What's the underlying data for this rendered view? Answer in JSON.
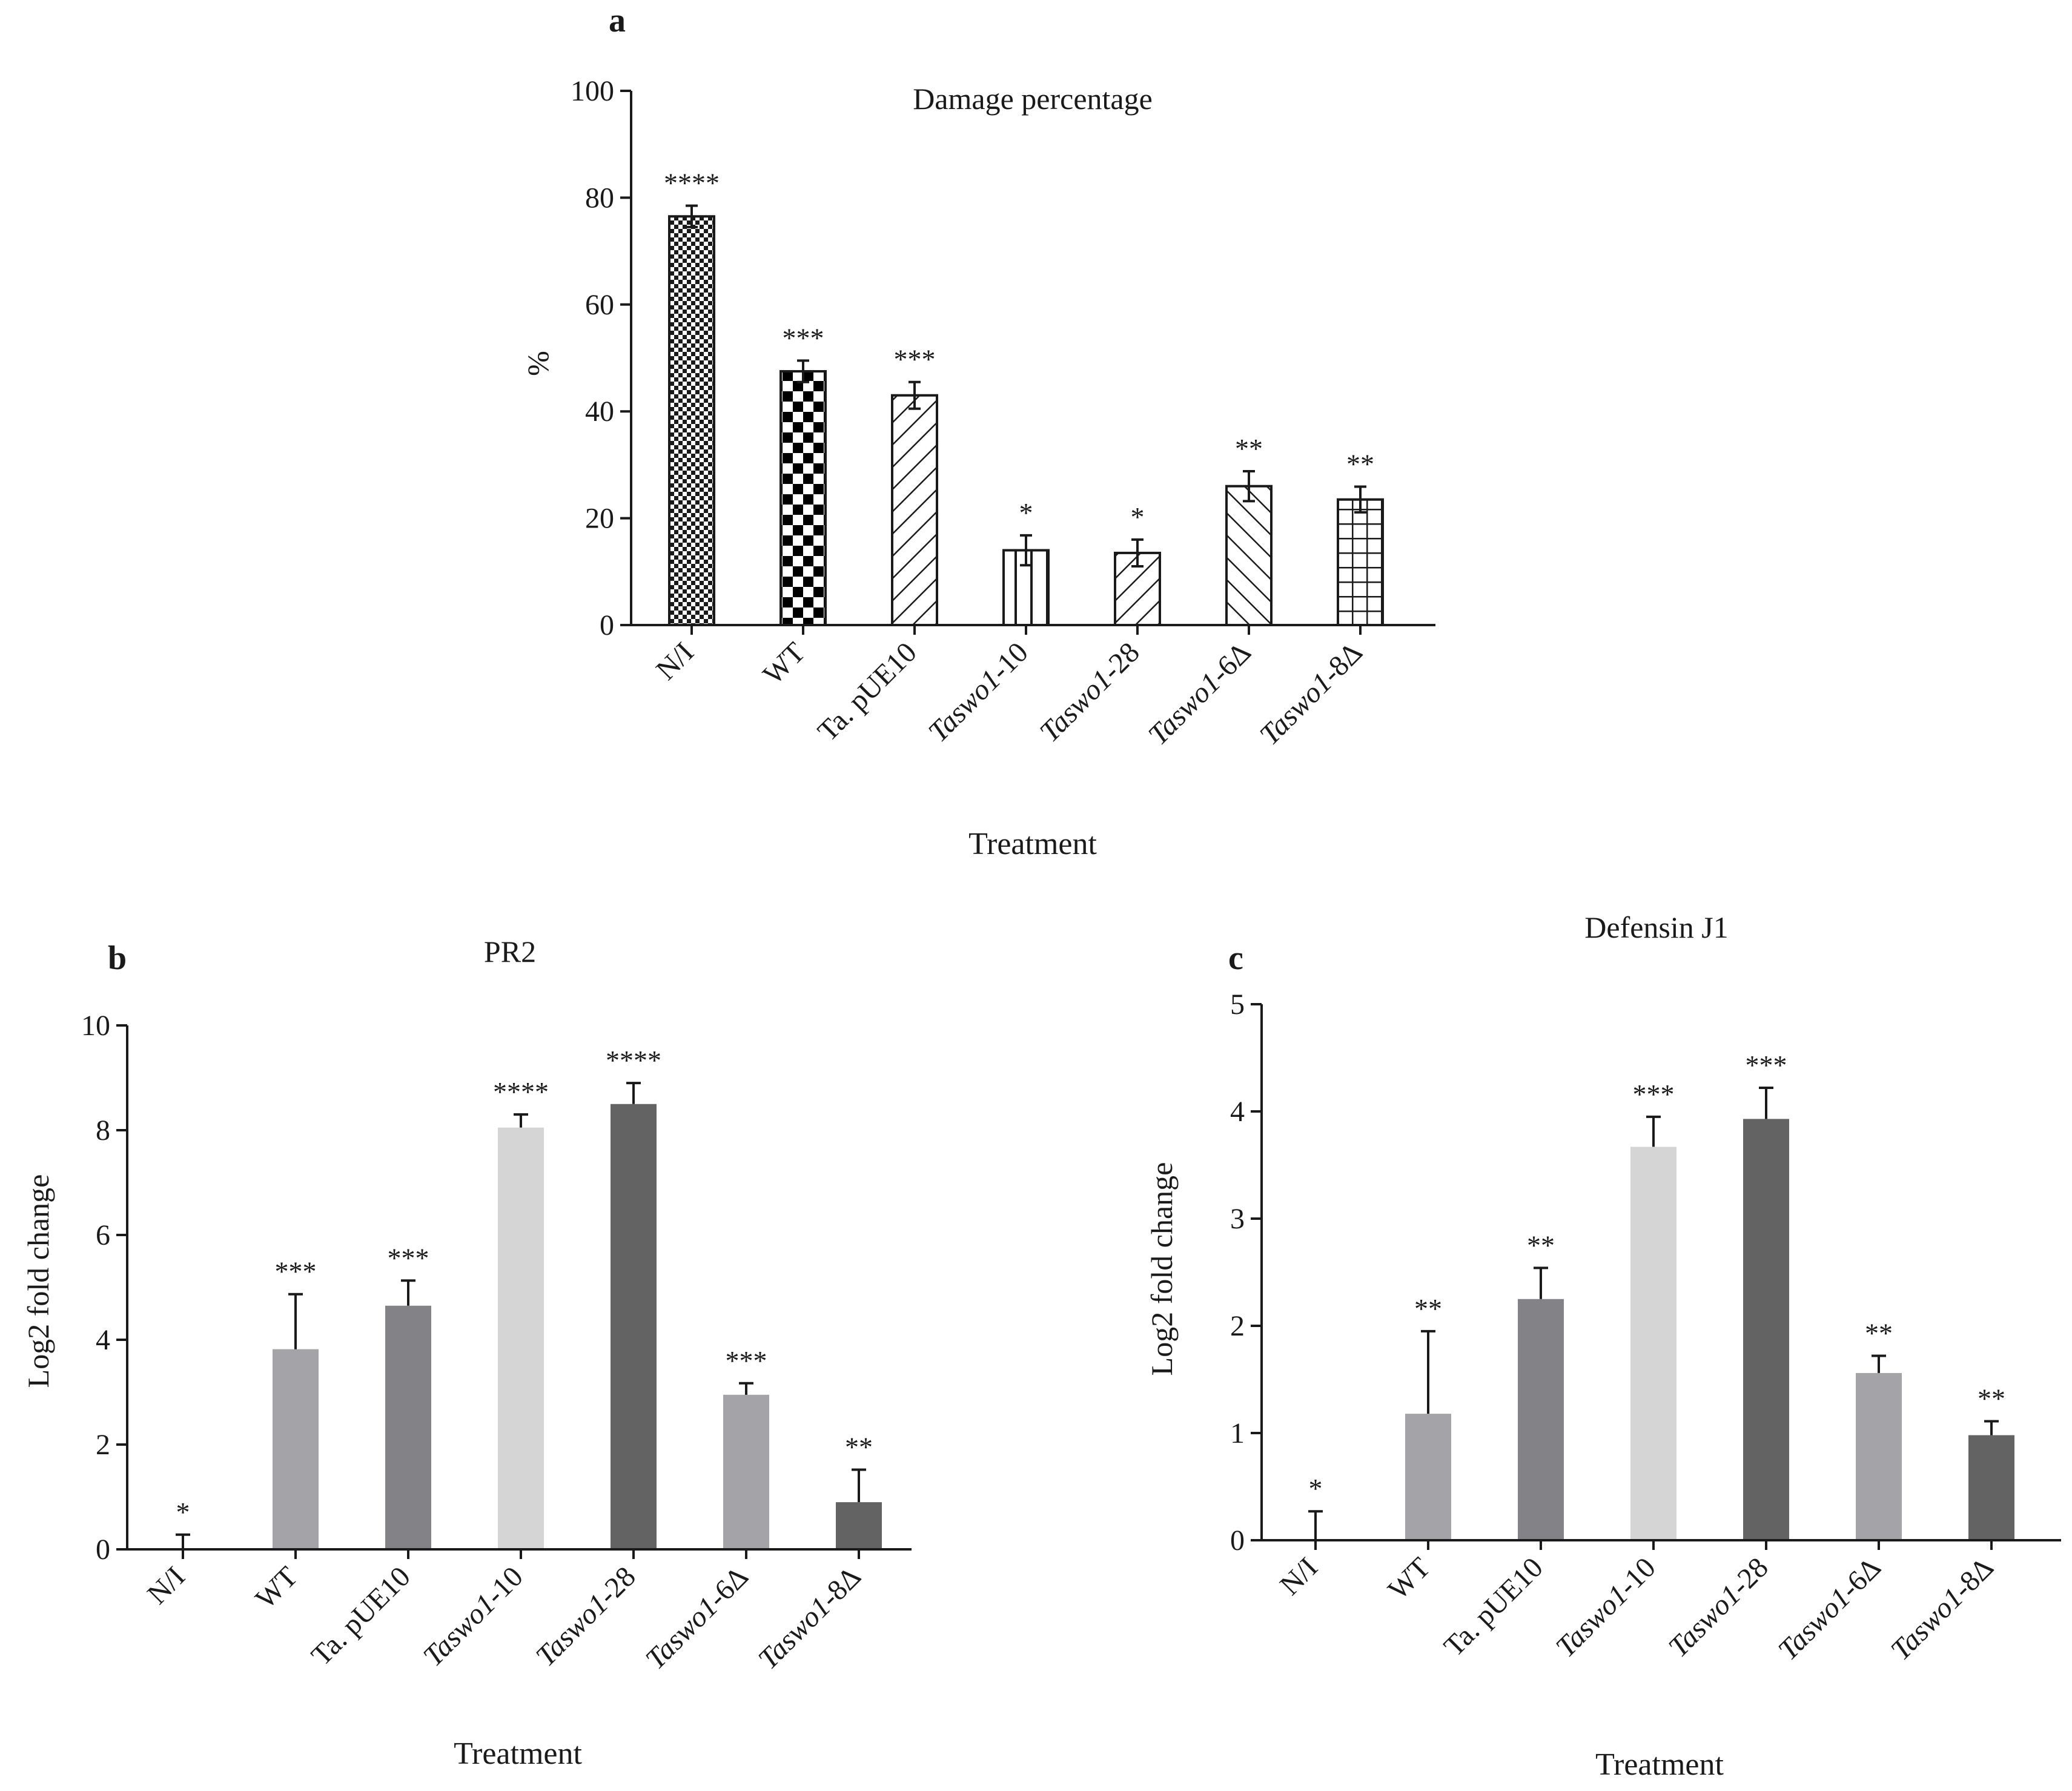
{
  "chart_data": [
    {
      "panel": "a",
      "type": "bar",
      "title": "Damage percentage",
      "xlabel": "Treatment",
      "ylabel": "%",
      "ylim": [
        0,
        100
      ],
      "yticks": [
        0,
        20,
        40,
        60,
        80,
        100
      ],
      "categories": [
        "N/I",
        "WT",
        "Ta. pUE10",
        "Taswo1-10",
        "Taswo1-28",
        "Taswo1-6Δ",
        "Taswo1-8Δ"
      ],
      "category_parts": [
        [
          "N/I",
          ""
        ],
        [
          "WT",
          ""
        ],
        [
          "Ta. pUE10",
          ""
        ],
        [
          "Taswo1",
          "-10"
        ],
        [
          "Taswo1",
          "-28"
        ],
        [
          "Taswo1",
          "-6Δ"
        ],
        [
          "Taswo1",
          "-8Δ"
        ]
      ],
      "values": [
        76.5,
        47.5,
        43,
        14,
        13.5,
        26,
        23.5
      ],
      "errors": [
        2,
        2,
        2.5,
        2.8,
        2.5,
        2.8,
        2.4
      ],
      "significance": [
        "****",
        "***",
        "***",
        "*",
        "*",
        "**",
        "**"
      ],
      "patterns": [
        "fine-check",
        "checker",
        "diag-up",
        "vlines",
        "diag-up",
        "diag-down",
        "grid"
      ]
    },
    {
      "panel": "b",
      "type": "bar",
      "title": "PR2",
      "xlabel": "Treatment",
      "ylabel": "Log2 fold change",
      "ylim": [
        0,
        10
      ],
      "yticks": [
        0,
        2,
        4,
        6,
        8,
        10
      ],
      "categories": [
        "N/I",
        "WT",
        "Ta. pUE10",
        "Taswo1-10",
        "Taswo1-28",
        "Taswo1-6Δ",
        "Taswo1-8Δ"
      ],
      "category_parts": [
        [
          "N/I",
          ""
        ],
        [
          "WT",
          ""
        ],
        [
          "Ta. pUE10",
          ""
        ],
        [
          "Taswo1",
          "-10"
        ],
        [
          "Taswo1",
          "-28"
        ],
        [
          "Taswo1",
          "-6Δ"
        ],
        [
          "Taswo1",
          "-8Δ"
        ]
      ],
      "values": [
        0,
        3.82,
        4.65,
        8.05,
        8.5,
        2.95,
        0.9
      ],
      "errors": [
        0.28,
        1.05,
        0.48,
        0.25,
        0.4,
        0.22,
        0.62
      ],
      "significance": [
        "*",
        "***",
        "***",
        "****",
        "****",
        "***",
        "**"
      ],
      "colors": [
        "#a4a3a8",
        "#a4a3a8",
        "#838286",
        "#d5d5d5",
        "#636363",
        "#a4a3a8",
        "#636363"
      ]
    },
    {
      "panel": "c",
      "type": "bar",
      "title": "Defensin J1",
      "xlabel": "Treatment",
      "ylabel": "Log2 fold change",
      "ylim": [
        0,
        5
      ],
      "yticks": [
        0,
        1,
        2,
        3,
        4,
        5
      ],
      "categories": [
        "N/I",
        "WT",
        "Ta. pUE10",
        "Taswo1-10",
        "Taswo1-28",
        "Taswo1-6Δ",
        "Taswo1-8Δ"
      ],
      "category_parts": [
        [
          "N/I",
          ""
        ],
        [
          "WT",
          ""
        ],
        [
          "Ta. pUE10",
          ""
        ],
        [
          "Taswo1",
          "-10"
        ],
        [
          "Taswo1",
          "-28"
        ],
        [
          "Taswo1",
          "-6Δ"
        ],
        [
          "Taswo1",
          "-8Δ"
        ]
      ],
      "values": [
        0,
        1.18,
        2.25,
        3.67,
        3.93,
        1.56,
        0.98
      ],
      "errors": [
        0.27,
        0.77,
        0.29,
        0.28,
        0.29,
        0.16,
        0.13
      ],
      "significance": [
        "*",
        "**",
        "**",
        "***",
        "***",
        "**",
        "**"
      ],
      "colors": [
        "#a4a3a8",
        "#a4a3a8",
        "#838286",
        "#d5d5d5",
        "#636363",
        "#a4a3a8",
        "#636363"
      ]
    }
  ]
}
